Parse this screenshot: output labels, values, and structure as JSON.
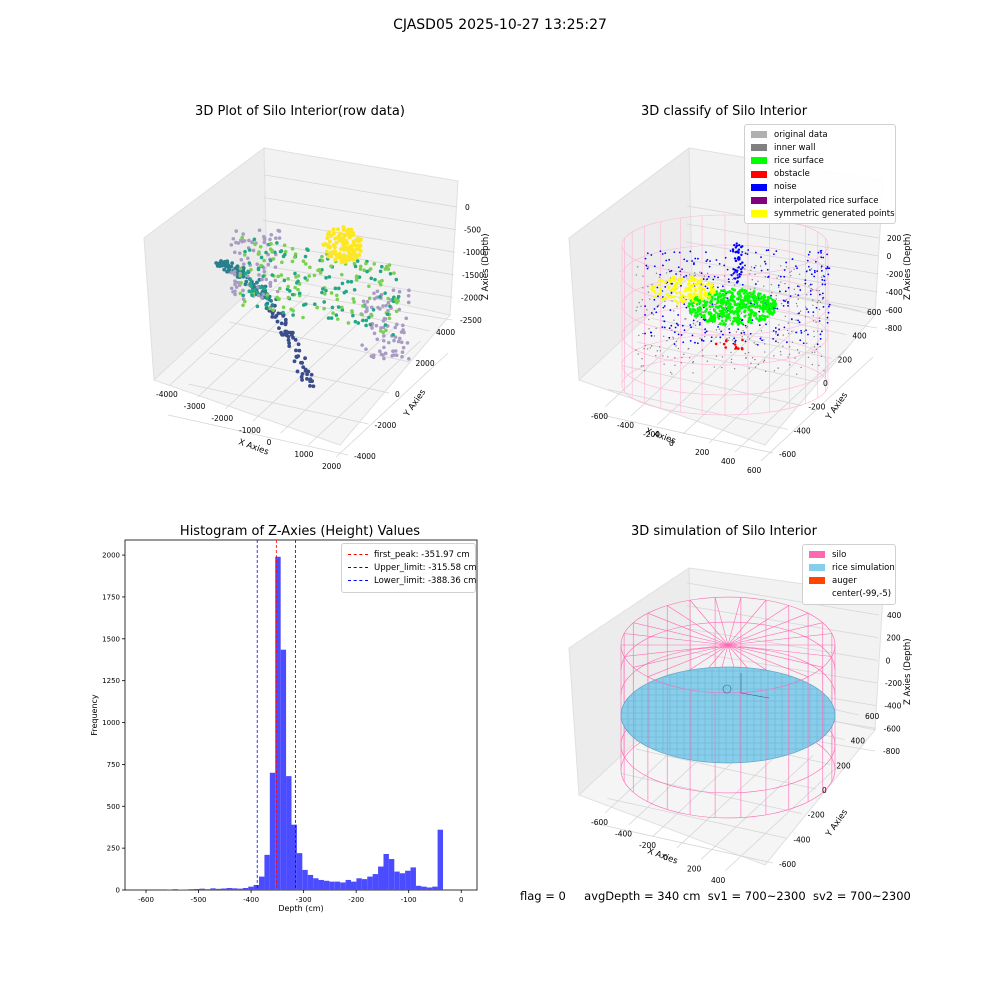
{
  "figure_title": "CJASD05 2025-10-27 13:25:27",
  "status_line": {
    "flag": "flag = 0",
    "avg_depth": "avgDepth = 340 cm",
    "sv1": "sv1 = 700~2300",
    "sv2": "sv2 = 700~2300"
  },
  "chart_data": [
    {
      "type": "scatter",
      "title": "3D Plot of Silo Interior(row data)",
      "xlabel": "X Axies",
      "ylabel": "Y Axies",
      "zlabel": "Z Axies (Depth)",
      "x_ticks": [
        "-4000",
        "-3000",
        "-2000",
        "-1000",
        "0",
        "1000",
        "2000"
      ],
      "y_ticks": [
        "-4000",
        "-2000",
        "0",
        "2000",
        "4000"
      ],
      "z_ticks": [
        "0",
        "-500",
        "-1000",
        "-1500",
        "-2000",
        "-2500"
      ],
      "colormap": [
        "#3b4d8a",
        "#2a7f8e",
        "#22a884",
        "#7ad151",
        "#fde725",
        "#a99cc4"
      ]
    },
    {
      "type": "scatter",
      "title": "3D classify of Silo Interior",
      "xlabel": "X Axies",
      "ylabel": "Y Axies",
      "zlabel": "Z Axies (Depth)",
      "x_ticks": [
        "-600",
        "-400",
        "-200",
        "0",
        "200",
        "400",
        "600"
      ],
      "y_ticks": [
        "-600",
        "-400",
        "-200",
        "0",
        "200",
        "400",
        "600"
      ],
      "z_ticks": [
        "200",
        "0",
        "-200",
        "-400",
        "-600",
        "-800"
      ],
      "legend": [
        {
          "label": "original data",
          "color": "#b0b0b0"
        },
        {
          "label": "inner wall",
          "color": "#808080"
        },
        {
          "label": "rice surface",
          "color": "#00ff00"
        },
        {
          "label": "obstacle",
          "color": "#ff0000"
        },
        {
          "label": "noise",
          "color": "#0000ff"
        },
        {
          "label": "interpolated rice surface",
          "color": "#800080"
        },
        {
          "label": "symmetric generated points",
          "color": "#ffff00"
        }
      ]
    },
    {
      "type": "bar",
      "title": "Histogram of Z-Axies (Height) Values",
      "xlabel": "Depth (cm)",
      "ylabel": "Frequency",
      "xlim": [
        -640,
        30
      ],
      "ylim": [
        0,
        2090
      ],
      "x_ticks": [
        -600,
        -500,
        -400,
        -300,
        -200,
        -100,
        0
      ],
      "y_ticks": [
        0,
        250,
        500,
        750,
        1000,
        1250,
        1500,
        1750,
        2000
      ],
      "bar_color": "#4b4bff",
      "bin_width": 10.3,
      "bins": [
        [
          -560,
          3
        ],
        [
          -549.7,
          5
        ],
        [
          -539.4,
          3
        ],
        [
          -529.1,
          2
        ],
        [
          -518.8,
          5
        ],
        [
          -508.5,
          6
        ],
        [
          -498.2,
          8
        ],
        [
          -487.9,
          5
        ],
        [
          -477.6,
          10
        ],
        [
          -467.3,
          7
        ],
        [
          -457,
          9
        ],
        [
          -446.7,
          12
        ],
        [
          -436.4,
          10
        ],
        [
          -426.1,
          8
        ],
        [
          -415.8,
          12
        ],
        [
          -405.5,
          20
        ],
        [
          -395.2,
          30
        ],
        [
          -384.9,
          80
        ],
        [
          -374.6,
          210
        ],
        [
          -364.3,
          700
        ],
        [
          -354,
          1990
        ],
        [
          -343.7,
          1435
        ],
        [
          -333.4,
          680
        ],
        [
          -323.1,
          390
        ],
        [
          -312.8,
          220
        ],
        [
          -302.5,
          120
        ],
        [
          -292.2,
          90
        ],
        [
          -281.9,
          70
        ],
        [
          -271.6,
          60
        ],
        [
          -261.3,
          55
        ],
        [
          -251,
          50
        ],
        [
          -240.7,
          50
        ],
        [
          -230.4,
          45
        ],
        [
          -220.1,
          60
        ],
        [
          -209.8,
          50
        ],
        [
          -199.5,
          70
        ],
        [
          -189.2,
          65
        ],
        [
          -178.9,
          80
        ],
        [
          -168.6,
          95
        ],
        [
          -158.3,
          140
        ],
        [
          -148,
          215
        ],
        [
          -137.7,
          185
        ],
        [
          -127.4,
          110
        ],
        [
          -117.1,
          100
        ],
        [
          -106.8,
          115
        ],
        [
          -96.5,
          135
        ],
        [
          -86.2,
          25
        ],
        [
          -75.9,
          20
        ],
        [
          -65.6,
          15
        ],
        [
          -55.3,
          20
        ],
        [
          -45,
          360
        ]
      ],
      "lines": [
        {
          "label": "first_peak: -351.97 cm",
          "x": -351.97,
          "color": "#ff0000"
        },
        {
          "label": "Upper_limit: -315.58 cm",
          "x": -315.58,
          "color": "#0000ff"
        },
        {
          "label": "Lower_limit: -388.36 cm",
          "x": -388.36,
          "color": "#0000ff"
        }
      ]
    },
    {
      "type": "area",
      "title": "3D simulation of Silo Interior",
      "xlabel": "X Axies",
      "ylabel": "Y Axies",
      "zlabel": "Z Axies (Depth)",
      "x_ticks": [
        "-600",
        "-400",
        "-200",
        "0",
        "200",
        "400"
      ],
      "y_ticks": [
        "-600",
        "-400",
        "-200",
        "0",
        "200",
        "400",
        "600"
      ],
      "z_ticks": [
        "400",
        "200",
        "0",
        "-200",
        "-400",
        "-600",
        "-800"
      ],
      "legend": [
        {
          "label": "silo",
          "color": "#ff69b4"
        },
        {
          "label": "rice simulation",
          "color": "#87ceeb"
        },
        {
          "label": "auger",
          "color": "#ff4500"
        },
        {
          "label": "center(-99,-5)",
          "color": ""
        }
      ]
    }
  ]
}
